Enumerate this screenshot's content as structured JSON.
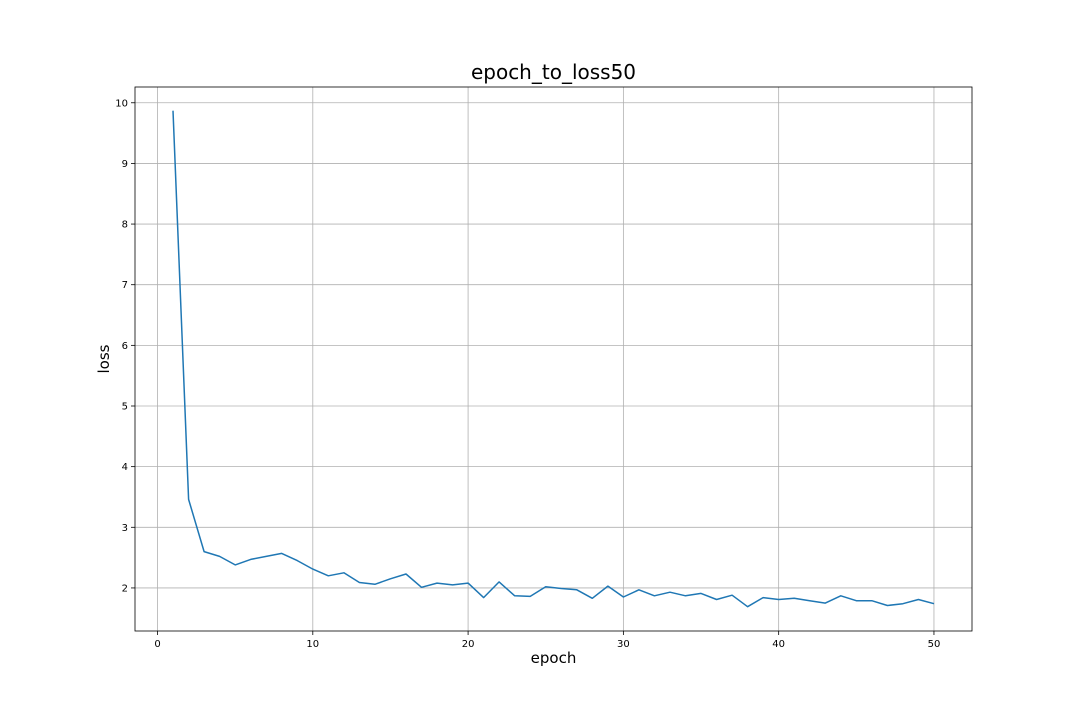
{
  "chart_data": {
    "type": "line",
    "title": "epoch_to_loss50",
    "xlabel": "epoch",
    "ylabel": "loss",
    "xlim": [
      -1.45,
      52.45
    ],
    "ylim": [
      1.29,
      10.26
    ],
    "xticks": [
      0,
      10,
      20,
      30,
      40,
      50
    ],
    "yticks": [
      2,
      3,
      4,
      5,
      6,
      7,
      8,
      9,
      10
    ],
    "grid": true,
    "colors": {
      "line": "#1f77b4"
    },
    "series": [
      {
        "x": [
          1,
          2,
          3,
          4,
          5,
          6,
          7,
          8,
          9,
          10,
          11,
          12,
          13,
          14,
          15,
          16,
          17,
          18,
          19,
          20,
          21,
          22,
          23,
          24,
          25,
          26,
          27,
          28,
          29,
          30,
          31,
          32,
          33,
          34,
          35,
          36,
          37,
          38,
          39,
          40,
          41,
          42,
          43,
          44,
          45,
          46,
          47,
          48,
          49,
          50
        ],
        "y": [
          9.87,
          3.46,
          2.6,
          2.52,
          2.38,
          2.47,
          2.52,
          2.57,
          2.45,
          2.31,
          2.2,
          2.25,
          2.09,
          2.06,
          2.15,
          2.23,
          2.01,
          2.08,
          2.05,
          2.08,
          1.84,
          2.1,
          1.87,
          1.86,
          2.02,
          1.99,
          1.97,
          1.83,
          2.03,
          1.85,
          1.97,
          1.87,
          1.93,
          1.87,
          1.91,
          1.81,
          1.88,
          1.69,
          1.84,
          1.81,
          1.83,
          1.79,
          1.75,
          1.87,
          1.79,
          1.79,
          1.71,
          1.74,
          1.81,
          1.74
        ]
      }
    ]
  }
}
